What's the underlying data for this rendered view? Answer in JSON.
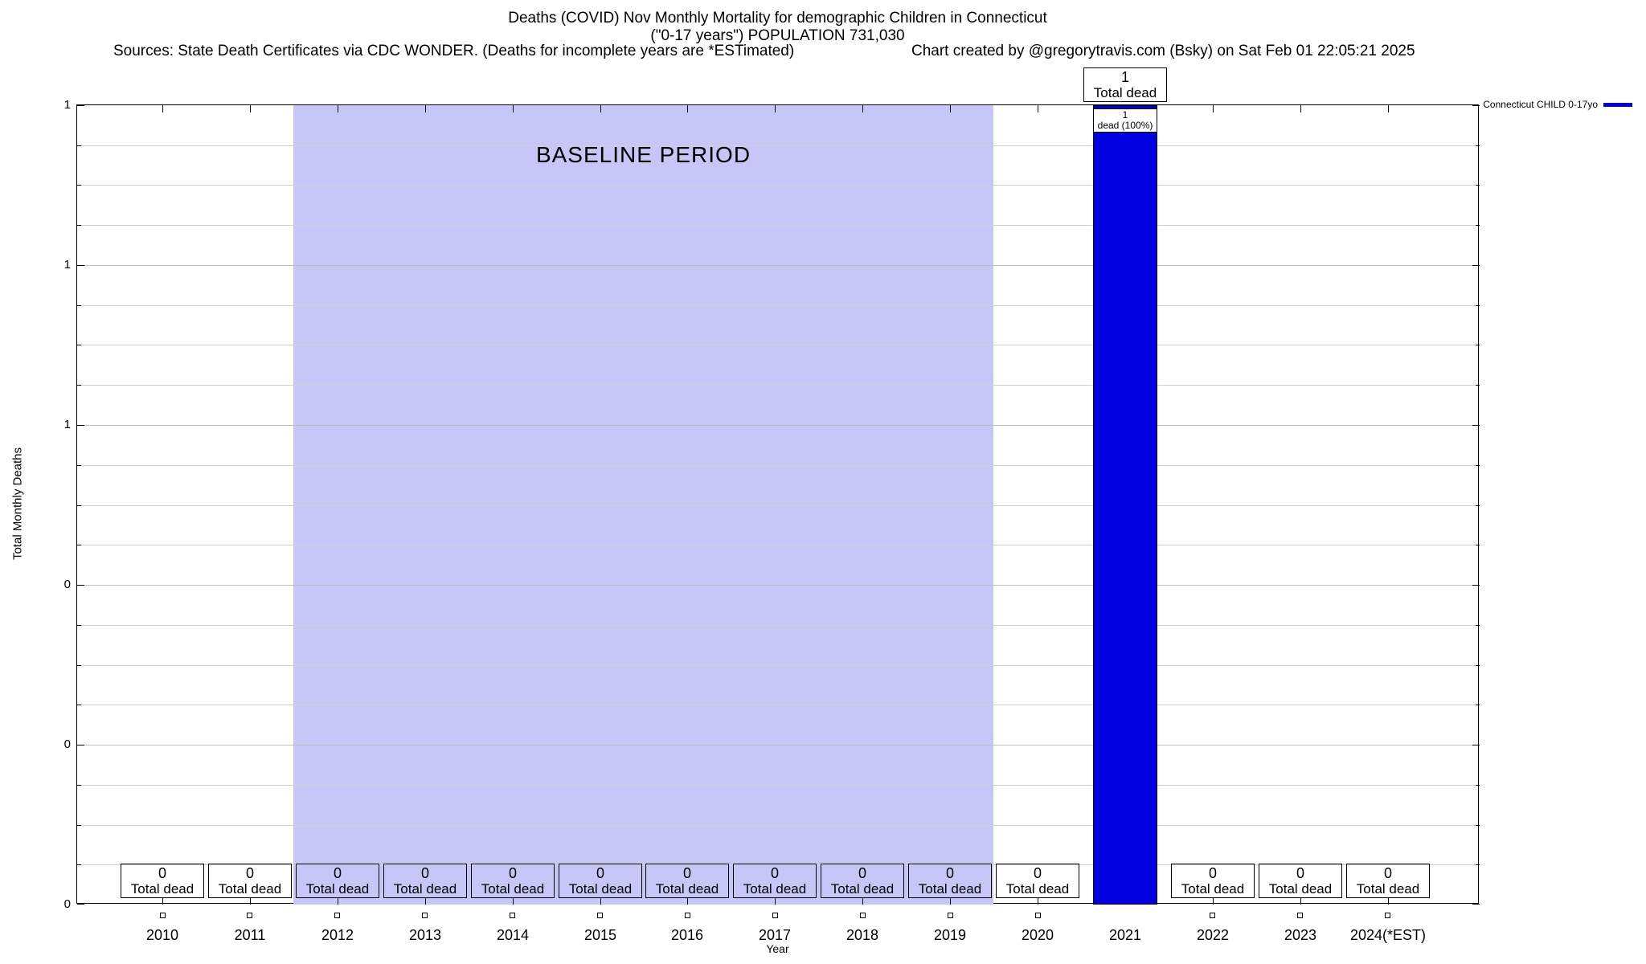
{
  "header": {
    "title_line1": "Deaths (COVID) Nov Monthly Mortality for demographic Children in Connecticut",
    "title_line2": "(\"0-17 years\") POPULATION 731,030",
    "sources": "Sources: State Death Certificates via CDC WONDER. (Deaths for incomplete years are *ESTimated)",
    "credit": "Chart created by @gregorytravis.com (Bsky) on Sat Feb 01 22:05:21 2025"
  },
  "chart_data": {
    "type": "bar",
    "title": "Deaths (COVID) Nov Monthly Mortality for demographic Children in Connecticut (\"0-17 years\") POPULATION 731,030",
    "xlabel": "Year",
    "ylabel": "Total Monthly Deaths",
    "ylim": [
      0,
      1
    ],
    "categories": [
      "2010",
      "2011",
      "2012",
      "2013",
      "2014",
      "2015",
      "2016",
      "2017",
      "2018",
      "2019",
      "2020",
      "2021",
      "2022",
      "2023",
      "2024(*EST)"
    ],
    "values": [
      0,
      0,
      0,
      0,
      0,
      0,
      0,
      0,
      0,
      0,
      0,
      1,
      0,
      0,
      0
    ],
    "bar_value_suffix": "Total dead",
    "yticks": [
      {
        "value": 0.0,
        "label": "0"
      },
      {
        "value": 0.2,
        "label": "0"
      },
      {
        "value": 0.4,
        "label": "0"
      },
      {
        "value": 0.6,
        "label": "1"
      },
      {
        "value": 0.8,
        "label": "1"
      },
      {
        "value": 1.0,
        "label": "1"
      }
    ],
    "minor_grid_step": 0.05,
    "grid": true,
    "baseline_band": {
      "label": "BASELINE PERIOD",
      "from": "2012",
      "to": "2019"
    },
    "peak_annotation": {
      "category": "2021",
      "top_line1": "1",
      "top_line2": "Total dead",
      "inner_line1": "1",
      "inner_line2": "dead (100%)"
    },
    "colors": {
      "bar": "#0000e0",
      "band": "#c6c6f7",
      "grid_minor": "#d0d0d0",
      "grid_major": "#bdbdbd",
      "axis": "#000000"
    },
    "legend": {
      "label": "Connecticut CHILD 0-17yo",
      "color": "#0000e0",
      "position": "top-right"
    }
  }
}
